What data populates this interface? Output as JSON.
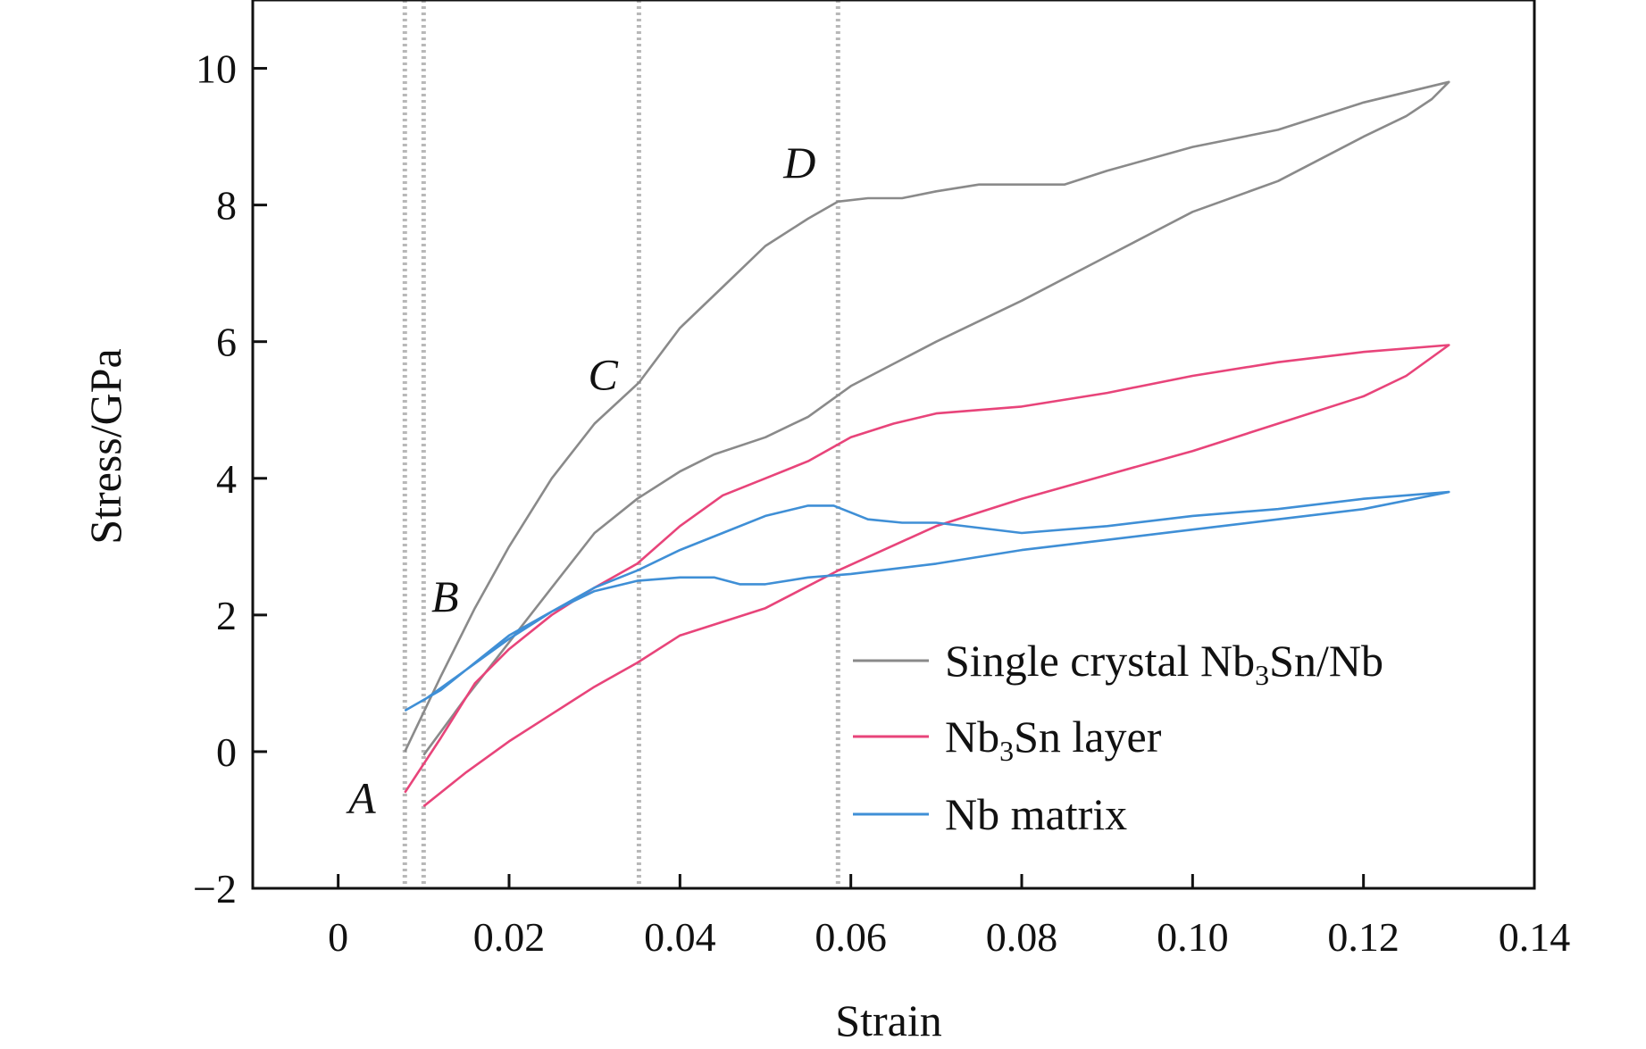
{
  "chart_data": {
    "type": "line",
    "xlabel": "Strain",
    "ylabel": "Stress/GPa",
    "xlim": [
      -0.01,
      0.14
    ],
    "ylim": [
      -2,
      11
    ],
    "xticks": [
      0,
      0.02,
      0.04,
      0.06,
      0.08,
      0.1,
      0.12,
      0.14
    ],
    "xtick_labels": [
      "0",
      "0.02",
      "0.04",
      "0.06",
      "0.08",
      "0.10",
      "0.12",
      "0.14"
    ],
    "yticks": [
      -2,
      0,
      2,
      4,
      6,
      8,
      10
    ],
    "ytick_labels": [
      "−2",
      "0",
      "2",
      "4",
      "6",
      "8",
      "10"
    ],
    "grid": false,
    "legend_position": "bottom-right",
    "vertical_reference_lines": [
      0.0078,
      0.01,
      0.0352,
      0.0585
    ],
    "point_labels": [
      {
        "text": "A",
        "x": 0.0028,
        "y": -0.9
      },
      {
        "text": "B",
        "x": 0.0125,
        "y": 2.05
      },
      {
        "text": "C",
        "x": 0.031,
        "y": 5.3
      },
      {
        "text": "D",
        "x": 0.054,
        "y": 8.4
      }
    ],
    "series": [
      {
        "name": "Single crystal Nb3Sn/Nb",
        "legend_main": "Single crystal Nb",
        "legend_sub1": "3",
        "legend_mid": "Sn/Nb",
        "color": "#8a8a8a",
        "x": [
          0.0078,
          0.012,
          0.016,
          0.02,
          0.025,
          0.03,
          0.0352,
          0.04,
          0.045,
          0.05,
          0.055,
          0.0585,
          0.062,
          0.066,
          0.07,
          0.075,
          0.08,
          0.085,
          0.09,
          0.1,
          0.11,
          0.12,
          0.13,
          0.128,
          0.125,
          0.12,
          0.11,
          0.1,
          0.09,
          0.08,
          0.07,
          0.06,
          0.055,
          0.05,
          0.044,
          0.04,
          0.035,
          0.03,
          0.025,
          0.02,
          0.015,
          0.01
        ],
        "y": [
          0.0,
          1.1,
          2.1,
          3.0,
          4.0,
          4.8,
          5.4,
          6.2,
          6.8,
          7.4,
          7.8,
          8.05,
          8.1,
          8.1,
          8.2,
          8.3,
          8.3,
          8.3,
          8.5,
          8.85,
          9.1,
          9.5,
          9.8,
          9.55,
          9.3,
          9.0,
          8.35,
          7.9,
          7.25,
          6.6,
          6.0,
          5.35,
          4.9,
          4.6,
          4.35,
          4.1,
          3.7,
          3.2,
          2.4,
          1.6,
          0.8,
          -0.05
        ]
      },
      {
        "name": "Nb3Sn layer",
        "legend_main": "Nb",
        "legend_sub1": "3",
        "legend_mid": "Sn layer",
        "color": "#e8447a",
        "x": [
          0.0078,
          0.012,
          0.016,
          0.02,
          0.025,
          0.03,
          0.035,
          0.04,
          0.045,
          0.05,
          0.055,
          0.06,
          0.065,
          0.07,
          0.08,
          0.09,
          0.1,
          0.11,
          0.12,
          0.13,
          0.125,
          0.12,
          0.11,
          0.1,
          0.09,
          0.08,
          0.07,
          0.0585,
          0.05,
          0.04,
          0.035,
          0.03,
          0.025,
          0.02,
          0.015,
          0.01
        ],
        "y": [
          -0.6,
          0.2,
          1.0,
          1.5,
          2.0,
          2.4,
          2.75,
          3.3,
          3.75,
          4.0,
          4.25,
          4.6,
          4.8,
          4.95,
          5.05,
          5.25,
          5.5,
          5.7,
          5.85,
          5.95,
          5.5,
          5.2,
          4.8,
          4.4,
          4.05,
          3.7,
          3.3,
          2.65,
          2.1,
          1.7,
          1.3,
          0.95,
          0.55,
          0.15,
          -0.3,
          -0.8
        ]
      },
      {
        "name": "Nb matrix",
        "legend_main": "Nb matrix",
        "legend_sub1": "",
        "legend_mid": "",
        "color": "#3f8fd6",
        "x": [
          0.0078,
          0.012,
          0.016,
          0.02,
          0.025,
          0.03,
          0.035,
          0.04,
          0.045,
          0.05,
          0.055,
          0.058,
          0.062,
          0.066,
          0.07,
          0.08,
          0.09,
          0.1,
          0.11,
          0.12,
          0.13,
          0.12,
          0.11,
          0.1,
          0.09,
          0.08,
          0.07,
          0.06,
          0.055,
          0.05,
          0.047,
          0.044,
          0.04,
          0.035,
          0.03,
          0.025,
          0.02,
          0.015,
          0.01
        ],
        "y": [
          0.6,
          0.9,
          1.3,
          1.7,
          2.05,
          2.4,
          2.65,
          2.95,
          3.2,
          3.45,
          3.6,
          3.6,
          3.4,
          3.35,
          3.35,
          3.2,
          3.3,
          3.45,
          3.55,
          3.7,
          3.8,
          3.55,
          3.4,
          3.25,
          3.1,
          2.95,
          2.75,
          2.6,
          2.55,
          2.45,
          2.45,
          2.55,
          2.55,
          2.5,
          2.35,
          2.05,
          1.65,
          1.2,
          0.75
        ]
      }
    ]
  }
}
